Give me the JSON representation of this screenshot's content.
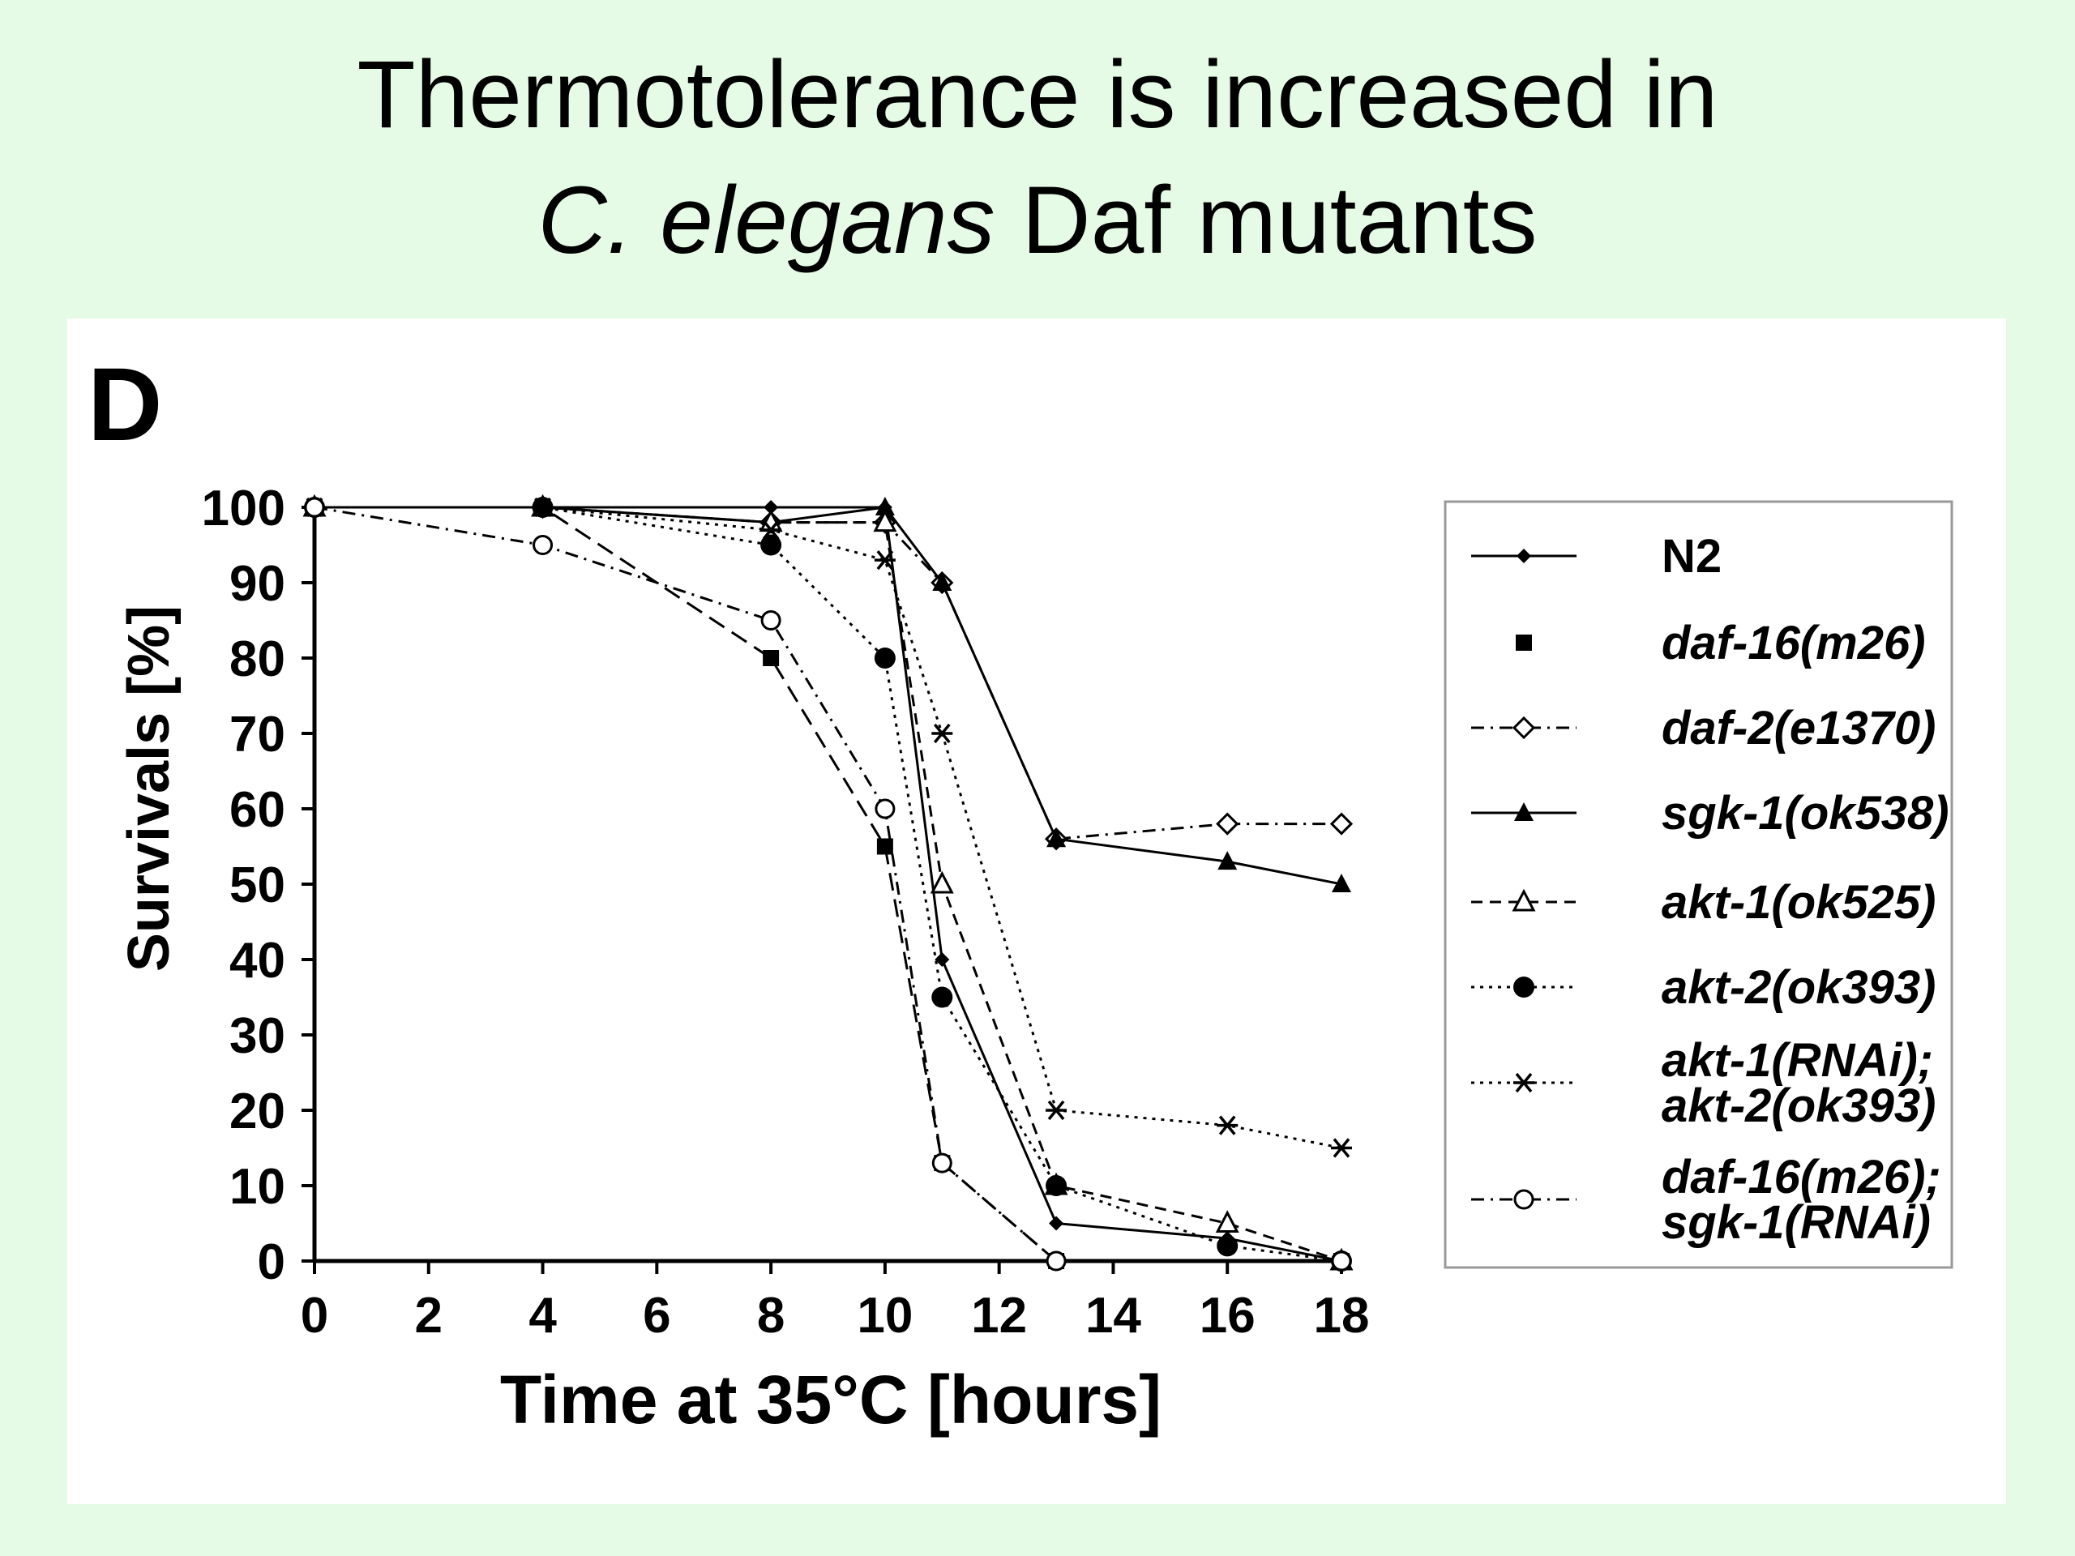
{
  "slide": {
    "title_line1": "Thermotolerance is increased in",
    "title_line2_italic": "C. elegans",
    "title_line2_rest": " Daf mutants",
    "background": "#e6fbe6"
  },
  "chart_data": {
    "type": "line",
    "panel_label": "D",
    "xlabel": "Time at 35°C [hours]",
    "ylabel": "Survivals [%]",
    "xlim": [
      0,
      18
    ],
    "ylim": [
      0,
      100
    ],
    "xticks": [
      0,
      2,
      4,
      6,
      8,
      10,
      12,
      14,
      16,
      18
    ],
    "yticks": [
      0,
      10,
      20,
      30,
      40,
      50,
      60,
      70,
      80,
      90,
      100
    ],
    "grid": false,
    "legend_position": "right",
    "series": [
      {
        "name": "N2",
        "marker": "small-diamond",
        "dash": "solid",
        "x": [
          0,
          4,
          8,
          10,
          11,
          13,
          16,
          18
        ],
        "y": [
          100,
          100,
          100,
          100,
          40,
          5,
          3,
          0
        ]
      },
      {
        "name": "daf-16(m26)",
        "marker": "square",
        "dash": "longdash",
        "x": [
          0,
          4,
          8,
          10,
          11,
          13,
          18
        ],
        "y": [
          100,
          100,
          80,
          55,
          13,
          0,
          0
        ]
      },
      {
        "name": "daf-2(e1370)",
        "marker": "open-diamond",
        "dash": "dashdot",
        "x": [
          0,
          4,
          8,
          10,
          11,
          13,
          16,
          18
        ],
        "y": [
          100,
          100,
          98,
          98,
          90,
          56,
          58,
          58
        ]
      },
      {
        "name": "sgk-1(ok538)",
        "marker": "triangle",
        "dash": "solid",
        "x": [
          0,
          4,
          8,
          10,
          11,
          13,
          16,
          18
        ],
        "y": [
          100,
          100,
          98,
          100,
          90,
          56,
          53,
          50
        ]
      },
      {
        "name": "akt-1(ok525)",
        "marker": "open-triangle",
        "dash": "dash",
        "x": [
          0,
          4,
          8,
          10,
          11,
          13,
          16,
          18
        ],
        "y": [
          100,
          100,
          98,
          98,
          50,
          10,
          5,
          0
        ]
      },
      {
        "name": "akt-2(ok393)",
        "marker": "circle",
        "dash": "dot",
        "x": [
          0,
          4,
          8,
          10,
          11,
          13,
          16,
          18
        ],
        "y": [
          100,
          100,
          95,
          80,
          35,
          10,
          2,
          0
        ]
      },
      {
        "name": "akt-1(RNAi);\nakt-2(ok393)",
        "marker": "asterisk",
        "dash": "dot",
        "x": [
          0,
          4,
          8,
          10,
          11,
          13,
          16,
          18
        ],
        "y": [
          100,
          100,
          97,
          93,
          70,
          20,
          18,
          15
        ]
      },
      {
        "name": "daf-16(m26);\nsgk-1(RNAi)",
        "marker": "open-circle",
        "dash": "dashdot",
        "x": [
          0,
          4,
          8,
          10,
          11,
          13,
          18
        ],
        "y": [
          100,
          95,
          85,
          60,
          13,
          0,
          0
        ]
      }
    ]
  }
}
